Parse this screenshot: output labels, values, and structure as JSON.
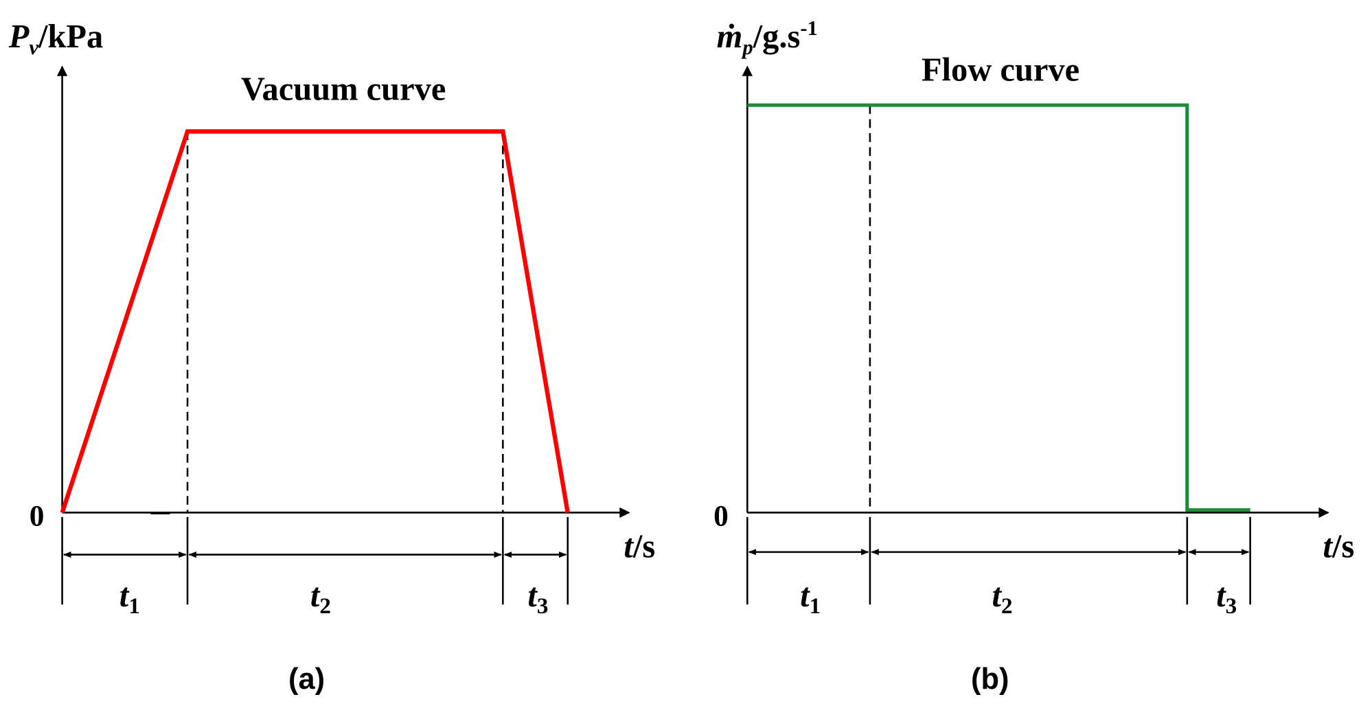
{
  "panels": [
    {
      "y_label": {
        "symbol": "P",
        "sub": "v",
        "unit": "/kPa"
      },
      "title": "Vacuum curve",
      "origin": "0",
      "x_label": {
        "symbol": "t",
        "unit": "/s"
      },
      "intervals": [
        {
          "symbol": "t",
          "sub": "1"
        },
        {
          "symbol": "t",
          "sub": "2"
        },
        {
          "symbol": "t",
          "sub": "3"
        }
      ],
      "caption": "(a)"
    },
    {
      "y_label": {
        "symbol": "ṁ",
        "sub": "p",
        "unit": "/g.s",
        "sup": "-1"
      },
      "title": "Flow curve",
      "origin": "0",
      "x_label": {
        "symbol": "t",
        "unit": "/s"
      },
      "intervals": [
        {
          "symbol": "t",
          "sub": "1"
        },
        {
          "symbol": "t",
          "sub": "2"
        },
        {
          "symbol": "t",
          "sub": "3"
        }
      ],
      "caption": "(b)"
    }
  ]
}
